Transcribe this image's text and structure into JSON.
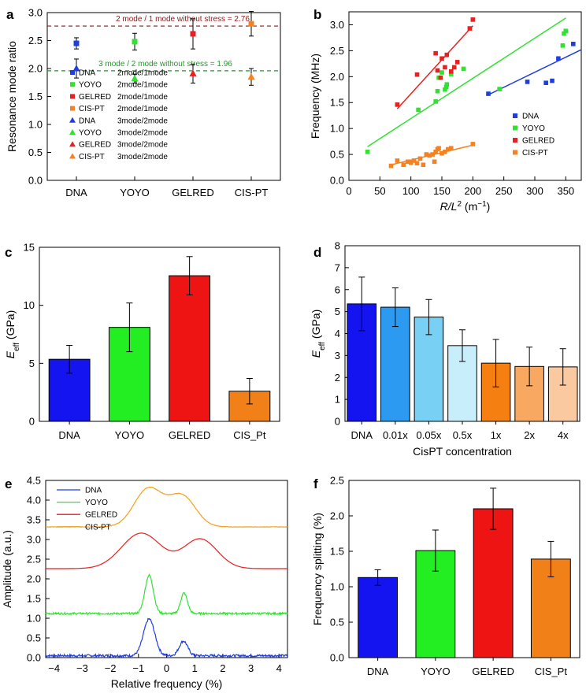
{
  "chart_data": [
    {
      "panel": "a",
      "type": "scatter",
      "ylabel": "Resonance mode ratio",
      "categories": [
        "DNA",
        "YOYO",
        "GELRED",
        "CIS-PT"
      ],
      "ylim": [
        0,
        3.0
      ],
      "yticks": [
        "0.0",
        "0.5",
        "1.0",
        "1.5",
        "2.0",
        "2.5",
        "3.0"
      ],
      "reference_lines": [
        {
          "value": 2.76,
          "label": "2 mode / 1 mode without stress = 2.76",
          "color": "#8b1a1a"
        },
        {
          "value": 1.96,
          "label": "3 mode / 2 mode without stress = 1.96",
          "color": "#1f9a2a"
        }
      ],
      "series": [
        {
          "name": "DNA",
          "desc": "2mode/1mode",
          "marker": "square",
          "color": "#1f3ee0",
          "values": [
            2.45
          ],
          "err": [
            0.1
          ]
        },
        {
          "name": "YOYO",
          "desc": "2mode/1mode",
          "marker": "square",
          "color": "#33e033",
          "values": [
            2.48
          ],
          "err": [
            0.15
          ]
        },
        {
          "name": "GELRED",
          "desc": "2mode/1mode",
          "marker": "square",
          "color": "#e82020",
          "values": [
            2.62
          ],
          "err": [
            0.27
          ]
        },
        {
          "name": "CIS-PT",
          "desc": "2mode/1mode",
          "marker": "square",
          "color": "#f58220",
          "values": [
            2.8
          ],
          "err": [
            0.22
          ]
        },
        {
          "name": "DNA",
          "desc": "3mode/2mode",
          "marker": "triangle",
          "color": "#1f3ee0",
          "values": [
            2.0
          ],
          "err": [
            0.17
          ]
        },
        {
          "name": "YOYO",
          "desc": "3mode/2mode",
          "marker": "triangle",
          "color": "#33e033",
          "values": [
            1.82
          ],
          "err": [
            0.08
          ]
        },
        {
          "name": "GELRED",
          "desc": "3mode/2mode",
          "marker": "triangle",
          "color": "#e82020",
          "values": [
            1.91
          ],
          "err": [
            0.17
          ]
        },
        {
          "name": "CIS-PT",
          "desc": "3mode/2mode",
          "marker": "triangle",
          "color": "#f58220",
          "values": [
            1.85
          ],
          "err": [
            0.15
          ]
        }
      ]
    },
    {
      "panel": "b",
      "type": "scatter",
      "xlabel_main": "R/L",
      "xlabel_sup": "2",
      "xlabel_unit": " (m",
      "xlabel_unit_sup": "−1",
      "xlabel_close": ")",
      "ylabel": "Frequency (MHz)",
      "xlim": [
        0,
        375
      ],
      "ylim": [
        0,
        3.25
      ],
      "xticks": [
        "0",
        "50",
        "100",
        "150",
        "200",
        "250",
        "300",
        "350"
      ],
      "yticks": [
        "0.0",
        "0.5",
        "1.0",
        "1.5",
        "2.0",
        "2.5",
        "3.0"
      ],
      "series": [
        {
          "name": "DNA",
          "color": "#1f3ee0",
          "x": [
            225,
            288,
            318,
            328,
            338,
            350,
            362
          ],
          "y": [
            1.67,
            1.9,
            1.88,
            1.92,
            2.35,
            2.88,
            2.63
          ],
          "fit": [
            [
              225,
              1.65
            ],
            [
              375,
              2.52
            ]
          ]
        },
        {
          "name": "YOYO",
          "color": "#33e033",
          "x": [
            30,
            112,
            140,
            143,
            145,
            150,
            155,
            157,
            158,
            165,
            185,
            243,
            345,
            347,
            350
          ],
          "y": [
            0.55,
            1.36,
            1.52,
            1.72,
            1.98,
            2.08,
            1.75,
            1.8,
            1.85,
            2.05,
            2.15,
            1.76,
            2.6,
            2.83,
            2.88
          ],
          "fit": [
            [
              30,
              0.65
            ],
            [
              350,
              3.13
            ]
          ]
        },
        {
          "name": "GELRED",
          "color": "#e82020",
          "x": [
            78,
            110,
            140,
            143,
            148,
            150,
            155,
            158,
            165,
            170,
            175,
            195,
            200
          ],
          "y": [
            1.46,
            2.04,
            2.45,
            2.12,
            1.98,
            2.35,
            2.18,
            2.42,
            2.1,
            2.18,
            2.28,
            2.93,
            3.1
          ],
          "fit": [
            [
              78,
              1.38
            ],
            [
              200,
              2.98
            ]
          ]
        },
        {
          "name": "CIS-PT",
          "color": "#f58220",
          "x": [
            68,
            78,
            88,
            95,
            100,
            105,
            110,
            115,
            120,
            125,
            130,
            135,
            138,
            140,
            143,
            145,
            150,
            155,
            160,
            165,
            200
          ],
          "y": [
            0.28,
            0.38,
            0.3,
            0.36,
            0.34,
            0.38,
            0.33,
            0.42,
            0.3,
            0.5,
            0.48,
            0.5,
            0.36,
            0.55,
            0.6,
            0.62,
            0.52,
            0.55,
            0.6,
            0.62,
            0.7
          ],
          "fit": [
            [
              68,
              0.3
            ],
            [
              200,
              0.68
            ]
          ]
        }
      ]
    },
    {
      "panel": "c",
      "type": "bar",
      "ylabel_main": "E",
      "ylabel_sub": "eff",
      "ylabel_unit": " (GPa)",
      "categories": [
        "DNA",
        "YOYO",
        "GELRED",
        "CIS_Pt"
      ],
      "values": [
        5.35,
        8.1,
        12.55,
        2.6
      ],
      "err": [
        1.2,
        2.1,
        1.65,
        1.1
      ],
      "colors": [
        "#1414f0",
        "#22ee22",
        "#ee1414",
        "#f28018"
      ],
      "ylim": [
        0,
        15
      ],
      "yticks": [
        "0",
        "5",
        "10",
        "15"
      ]
    },
    {
      "panel": "d",
      "type": "bar",
      "ylabel_main": "E",
      "ylabel_sub": "eff",
      "ylabel_unit": " (GPa)",
      "xlabel": "CisPT concentration",
      "categories": [
        "DNA",
        "0.01x",
        "0.05x",
        "0.5x",
        "1x",
        "2x",
        "4x"
      ],
      "values": [
        5.35,
        5.2,
        4.75,
        3.45,
        2.65,
        2.5,
        2.48
      ],
      "err": [
        1.22,
        0.88,
        0.8,
        0.72,
        1.08,
        0.88,
        0.83
      ],
      "colors": [
        "#1414f0",
        "#2b9af0",
        "#78d0f5",
        "#c8eefc",
        "#f57f10",
        "#f8a860",
        "#fbc9a0"
      ],
      "ylim": [
        0,
        8
      ],
      "yticks": [
        "0",
        "1",
        "2",
        "3",
        "4",
        "5",
        "6",
        "7",
        "8"
      ]
    },
    {
      "panel": "e",
      "type": "line",
      "xlabel": "Relative frequency (%)",
      "ylabel": "Amplitude (a.u.)",
      "xlim": [
        -4.3,
        4.3
      ],
      "ylim": [
        0,
        4.5
      ],
      "xticks": [
        "−4",
        "−3",
        "−2",
        "−1",
        "0",
        "1",
        "2",
        "3",
        "4"
      ],
      "yticks": [
        "0.0",
        "0.5",
        "1.0",
        "1.5",
        "2.0",
        "2.5",
        "3.0",
        "3.5",
        "4.0",
        "4.5"
      ],
      "series": [
        {
          "name": "DNA",
          "color": "#1f3ee0",
          "baseline": 0.05,
          "noise": 0.03,
          "peaks": [
            {
              "c": -0.62,
              "a": 0.93,
              "w": 0.2
            },
            {
              "c": 0.6,
              "a": 0.37,
              "w": 0.15
            }
          ]
        },
        {
          "name": "YOYO",
          "color": "#33e033",
          "baseline": 1.12,
          "noise": 0.025,
          "peaks": [
            {
              "c": -0.62,
              "a": 0.97,
              "w": 0.15
            },
            {
              "c": 0.62,
              "a": 0.52,
              "w": 0.12
            }
          ]
        },
        {
          "name": "GELRED",
          "color": "#e82020",
          "baseline": 2.26,
          "noise": 0.0,
          "peaks": [
            {
              "c": -0.9,
              "a": 0.9,
              "w": 0.7
            },
            {
              "c": 1.2,
              "a": 0.75,
              "w": 0.6
            }
          ]
        },
        {
          "name": "CIS-PT",
          "color": "#f5a020",
          "baseline": 3.32,
          "noise": 0.006,
          "peaks": [
            {
              "c": -0.65,
              "a": 0.97,
              "w": 0.5
            },
            {
              "c": 0.55,
              "a": 0.78,
              "w": 0.48
            }
          ]
        }
      ]
    },
    {
      "panel": "f",
      "type": "bar",
      "ylabel": "Frequency splitting (%)",
      "categories": [
        "DNA",
        "YOYO",
        "GELRED",
        "CIS_Pt"
      ],
      "values": [
        1.13,
        1.51,
        2.1,
        1.39
      ],
      "err": [
        0.11,
        0.29,
        0.29,
        0.25
      ],
      "colors": [
        "#1414f0",
        "#22ee22",
        "#ee1414",
        "#f28018"
      ],
      "ylim": [
        0,
        2.5
      ],
      "yticks": [
        "0.0",
        "0.5",
        "1.0",
        "1.5",
        "2.0",
        "2.5"
      ]
    }
  ],
  "panel_labels": [
    "a",
    "b",
    "c",
    "d",
    "e",
    "f"
  ]
}
